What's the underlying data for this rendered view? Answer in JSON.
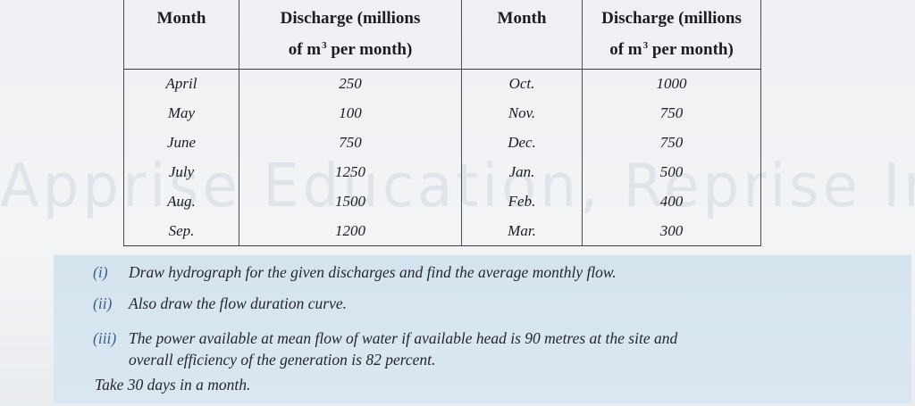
{
  "watermark": "Apprise Education, Reprise Innovations",
  "table": {
    "headers": {
      "month_left": "Month",
      "discharge_left_line1": "Discharge (millions",
      "discharge_left_line2": "of m",
      "discharge_left_exp": "3",
      "discharge_left_line3": "per month)",
      "month_right": "Month",
      "discharge_right_line1": "Discharge (millions",
      "discharge_right_line2": "of m",
      "discharge_right_exp": "3",
      "discharge_right_line3": "per month)"
    },
    "rows": [
      {
        "m1": "April",
        "d1": "250",
        "m2": "Oct.",
        "d2": "1000"
      },
      {
        "m1": "May",
        "d1": "100",
        "m2": "Nov.",
        "d2": "750"
      },
      {
        "m1": "June",
        "d1": "750",
        "m2": "Dec.",
        "d2": "750"
      },
      {
        "m1": "July",
        "d1": "1250",
        "m2": "Jan.",
        "d2": "500"
      },
      {
        "m1": "Aug.",
        "d1": "1500",
        "m2": "Feb.",
        "d2": "400"
      },
      {
        "m1": "Sep.",
        "d1": "1200",
        "m2": "Mar.",
        "d2": "300"
      }
    ]
  },
  "questions": [
    {
      "num": "(i)",
      "text": "Draw hydrograph for the given discharges and find the average monthly flow."
    },
    {
      "num": "(ii)",
      "text": "Also draw the flow duration curve."
    },
    {
      "num": "(iii)",
      "text": "The power available at mean flow of water if available head is 90 metres at the site and"
    },
    {
      "num": "",
      "text": "overall efficiency of the generation is 82 percent."
    }
  ],
  "footer_note": "Take 30 days in a month."
}
